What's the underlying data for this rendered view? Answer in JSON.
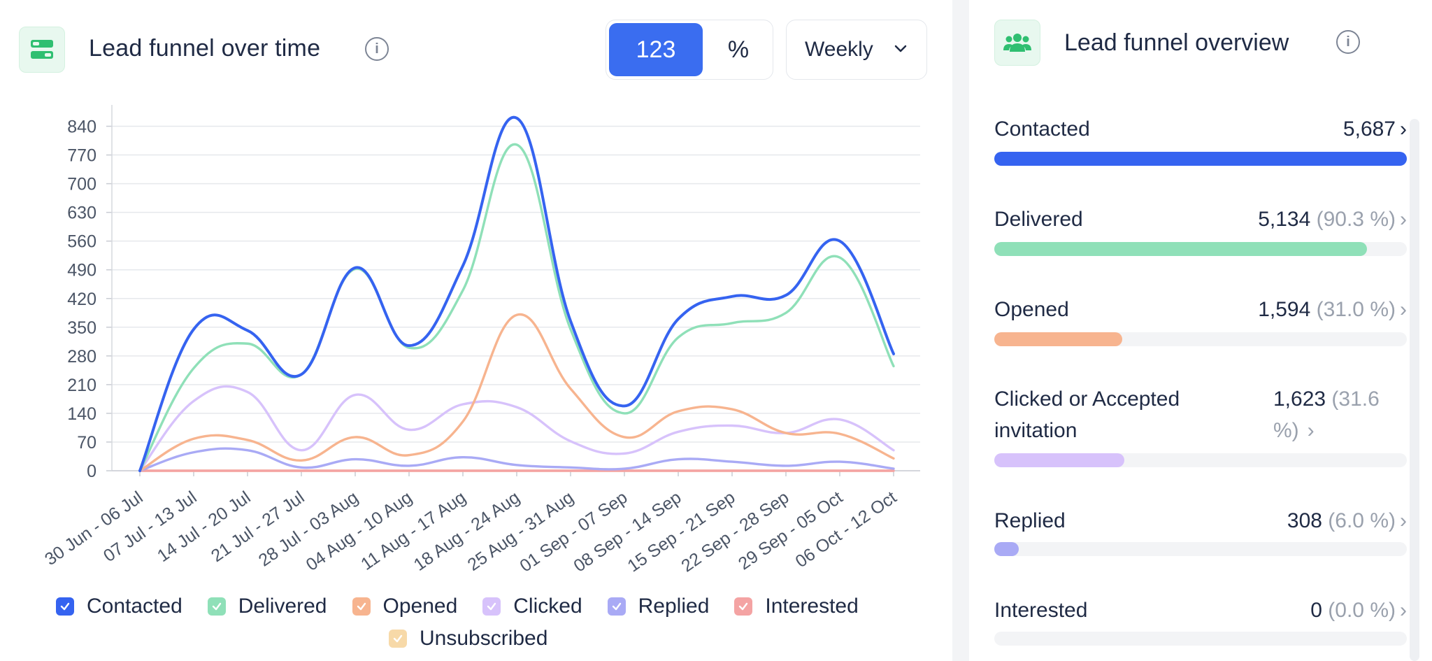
{
  "header": {
    "title": "Lead funnel over time",
    "toggle_count": "123",
    "toggle_percent": "%",
    "period": "Weekly"
  },
  "chart_data": {
    "type": "line",
    "title": "",
    "xlabel": "",
    "ylabel": "",
    "ylim": [
      0,
      875
    ],
    "y_ticks": [
      "0",
      "70",
      "140",
      "210",
      "280",
      "350",
      "420",
      "490",
      "560",
      "630",
      "700",
      "770",
      "840"
    ],
    "categories": [
      "30 Jun - 06 Jul",
      "07 Jul - 13 Jul",
      "14 Jul - 20 Jul",
      "21 Jul - 27 Jul",
      "28 Jul - 03 Aug",
      "04 Aug - 10 Aug",
      "11 Aug - 17 Aug",
      "18 Aug - 24 Aug",
      "25 Aug - 31 Aug",
      "01 Sep - 07 Sep",
      "08 Sep - 14 Sep",
      "15 Sep - 21 Sep",
      "22 Sep - 28 Sep",
      "29 Sep - 05 Oct",
      "06 Oct - 12 Oct"
    ],
    "grid": true,
    "legend_position": "bottom",
    "series": [
      {
        "name": "Contacted",
        "color": "#3563f0",
        "values": [
          0,
          345,
          342,
          235,
          495,
          305,
          500,
          860,
          365,
          158,
          370,
          425,
          428,
          560,
          285
        ]
      },
      {
        "name": "Delivered",
        "color": "#8fe0b8",
        "values": [
          0,
          250,
          310,
          235,
          492,
          300,
          440,
          795,
          345,
          140,
          325,
          360,
          385,
          520,
          255
        ]
      },
      {
        "name": "Opened",
        "color": "#f7b48f",
        "values": [
          0,
          78,
          75,
          25,
          82,
          38,
          120,
          380,
          200,
          82,
          145,
          150,
          92,
          90,
          30
        ]
      },
      {
        "name": "Clicked",
        "color": "#d7c2fb",
        "values": [
          0,
          170,
          192,
          50,
          185,
          100,
          162,
          155,
          72,
          42,
          95,
          110,
          92,
          125,
          50
        ]
      },
      {
        "name": "Replied",
        "color": "#a9aaf5",
        "values": [
          0,
          45,
          50,
          8,
          28,
          12,
          33,
          14,
          8,
          5,
          28,
          22,
          12,
          22,
          5
        ]
      },
      {
        "name": "Interested",
        "color": "#f4a3a3",
        "values": [
          0,
          0,
          0,
          0,
          0,
          0,
          0,
          0,
          0,
          0,
          0,
          0,
          0,
          0,
          0
        ]
      },
      {
        "name": "Unsubscribed",
        "color": "#f7d9a8",
        "values": [
          0,
          0,
          0,
          0,
          0,
          0,
          0,
          0,
          0,
          0,
          0,
          0,
          0,
          0,
          0
        ]
      }
    ]
  },
  "legend": [
    {
      "label": "Contacted",
      "color": "#3563f0"
    },
    {
      "label": "Delivered",
      "color": "#8fe0b8"
    },
    {
      "label": "Opened",
      "color": "#f7b48f"
    },
    {
      "label": "Clicked",
      "color": "#d7c2fb"
    },
    {
      "label": "Replied",
      "color": "#a9aaf5"
    },
    {
      "label": "Interested",
      "color": "#f4a3a3"
    },
    {
      "label": "Unsubscribed",
      "color": "#f7d9a8"
    }
  ],
  "overview": {
    "title": "Lead funnel overview",
    "items": [
      {
        "label": "Contacted",
        "value": "5,687",
        "pct": "",
        "color": "#3563f0",
        "fraction": 1.0
      },
      {
        "label": "Delivered",
        "value": "5,134",
        "pct": "(90.3 %)",
        "color": "#8fe0b8",
        "fraction": 0.903
      },
      {
        "label": "Opened",
        "value": "1,594",
        "pct": "(31.0 %)",
        "color": "#f7b48f",
        "fraction": 0.31
      },
      {
        "label_line1": "Clicked or Accepted",
        "label_line2": "invitation",
        "value": "1,623",
        "pct_line1": "(31.6",
        "pct_line2": "%)",
        "color": "#d7c2fb",
        "fraction": 0.316
      },
      {
        "label": "Replied",
        "value": "308",
        "pct": "(6.0 %)",
        "color": "#a9aaf5",
        "fraction": 0.06
      },
      {
        "label": "Interested",
        "value": "0",
        "pct": "(0.0 %)",
        "color": "#f4a3a3",
        "fraction": 0.0
      }
    ]
  }
}
